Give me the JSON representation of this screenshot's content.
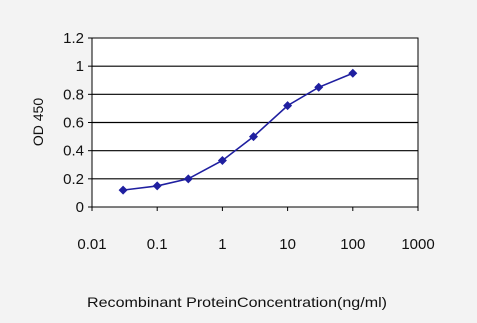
{
  "chart_data": {
    "type": "line",
    "title": "",
    "xlabel": "Recombinant ProteinConcentration(ng/ml)",
    "ylabel": "OD 450",
    "x_scale": "log",
    "xlim": [
      0.01,
      1000
    ],
    "ylim": [
      0,
      1.2
    ],
    "x_ticks": [
      0.01,
      0.1,
      1,
      10,
      100,
      1000
    ],
    "x_tick_labels": [
      "0.01",
      "0.1",
      "1",
      "10",
      "100",
      "1000"
    ],
    "y_ticks": [
      0,
      0.2,
      0.4,
      0.6,
      0.8,
      1,
      1.2
    ],
    "y_tick_labels": [
      "0",
      "0.2",
      "0.4",
      "0.6",
      "0.8",
      "1",
      "1.2"
    ],
    "grid": "horizontal",
    "legend": "none",
    "series": [
      {
        "x": [
          0.03,
          0.1,
          0.3,
          1,
          3,
          10,
          30,
          100
        ],
        "y": [
          0.12,
          0.15,
          0.2,
          0.33,
          0.5,
          0.72,
          0.85,
          0.95
        ],
        "color": "#1f1fa0"
      }
    ],
    "colors": {
      "plot_bg": "#ffffff",
      "grid": "#000000",
      "series": "#1f1fa0"
    }
  }
}
